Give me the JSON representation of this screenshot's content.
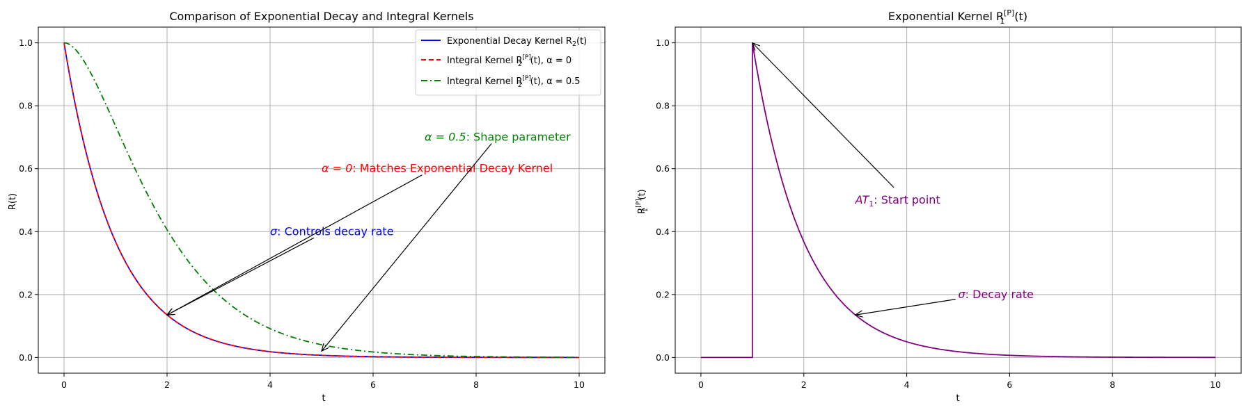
{
  "chart_data": [
    {
      "type": "line",
      "title_main": "Comparison of Exponential Decay and Integral Kernels",
      "xlabel": "t",
      "ylabel": "R(t)",
      "xlim": [
        -0.5,
        10.5
      ],
      "ylim": [
        -0.05,
        1.05
      ],
      "xticks": [
        "0",
        "2",
        "4",
        "6",
        "8",
        "10"
      ],
      "yticks": [
        "0.0",
        "0.2",
        "0.4",
        "0.6",
        "0.8",
        "1.0"
      ],
      "grid": true,
      "legend_position": "top-right",
      "x_range": [
        0,
        10
      ],
      "series": [
        {
          "name_main": "Exponential Decay Kernel R",
          "name_sub": "2",
          "name_tail": "(t)",
          "formula": "exp(-t)",
          "color": "#0000ff",
          "style": "solid"
        },
        {
          "name_main": "Integral Kernel R",
          "name_sub": "2",
          "name_sup": "[P]",
          "name_tail": "(t), α = 0",
          "formula": "exp(-t)",
          "color": "#ff0000",
          "style": "dashed"
        },
        {
          "name_main": "Integral Kernel R",
          "name_sub": "2",
          "name_sup": "[P]",
          "name_tail": "(t), α = 0.5",
          "formula": "(1+t)exp(-t)",
          "color": "#008000",
          "style": "dashdot"
        }
      ],
      "annotations": [
        {
          "text_sym": "σ",
          "text_rest": ": Controls decay rate",
          "color": "#0000ff",
          "text_xy": [
            4.0,
            0.4
          ],
          "arrow_from": [
            4.85,
            0.38
          ],
          "arrow_to": [
            2.0,
            0.135
          ]
        },
        {
          "text_sym": "α = 0",
          "text_rest": ": Matches Exponential Decay Kernel",
          "color": "#ff0000",
          "text_xy": [
            5.0,
            0.6
          ],
          "arrow_from": [
            6.95,
            0.58
          ],
          "arrow_to": [
            2.0,
            0.135
          ]
        },
        {
          "text_sym": "α = 0.5",
          "text_rest": ": Shape parameter",
          "color": "#008000",
          "text_xy": [
            7.0,
            0.7
          ],
          "arrow_from": [
            8.3,
            0.68
          ],
          "arrow_to": [
            5.0,
            0.02
          ]
        }
      ]
    },
    {
      "type": "line",
      "title_main": "Exponential Kernel R",
      "title_sub": "1",
      "title_sup": "[P]",
      "title_tail": "(t)",
      "xlabel": "t",
      "ylabel_main": "R",
      "ylabel_sub": "1",
      "ylabel_sup": "[P]",
      "ylabel_tail": "(t)",
      "xlim": [
        -0.5,
        10.5
      ],
      "ylim": [
        -0.05,
        1.05
      ],
      "xticks": [
        "0",
        "2",
        "4",
        "6",
        "8",
        "10"
      ],
      "yticks": [
        "0.0",
        "0.2",
        "0.4",
        "0.6",
        "0.8",
        "1.0"
      ],
      "grid": true,
      "x_range": [
        0,
        10
      ],
      "series": [
        {
          "formula": "t < 1 ? 0 : exp(-(t-1))",
          "color": "#800080",
          "style": "solid"
        }
      ],
      "annotations": [
        {
          "text_sym": "AT",
          "text_sub": "1",
          "text_rest": ": Start point",
          "color": "#800080",
          "text_xy": [
            3.0,
            0.5
          ],
          "arrow_from": [
            3.75,
            0.54
          ],
          "arrow_to": [
            1.0,
            1.0
          ]
        },
        {
          "text_sym": "σ",
          "text_rest": ": Decay rate",
          "color": "#800080",
          "text_xy": [
            5.0,
            0.2
          ],
          "arrow_from": [
            4.95,
            0.185
          ],
          "arrow_to": [
            3.0,
            0.135
          ]
        }
      ]
    }
  ]
}
